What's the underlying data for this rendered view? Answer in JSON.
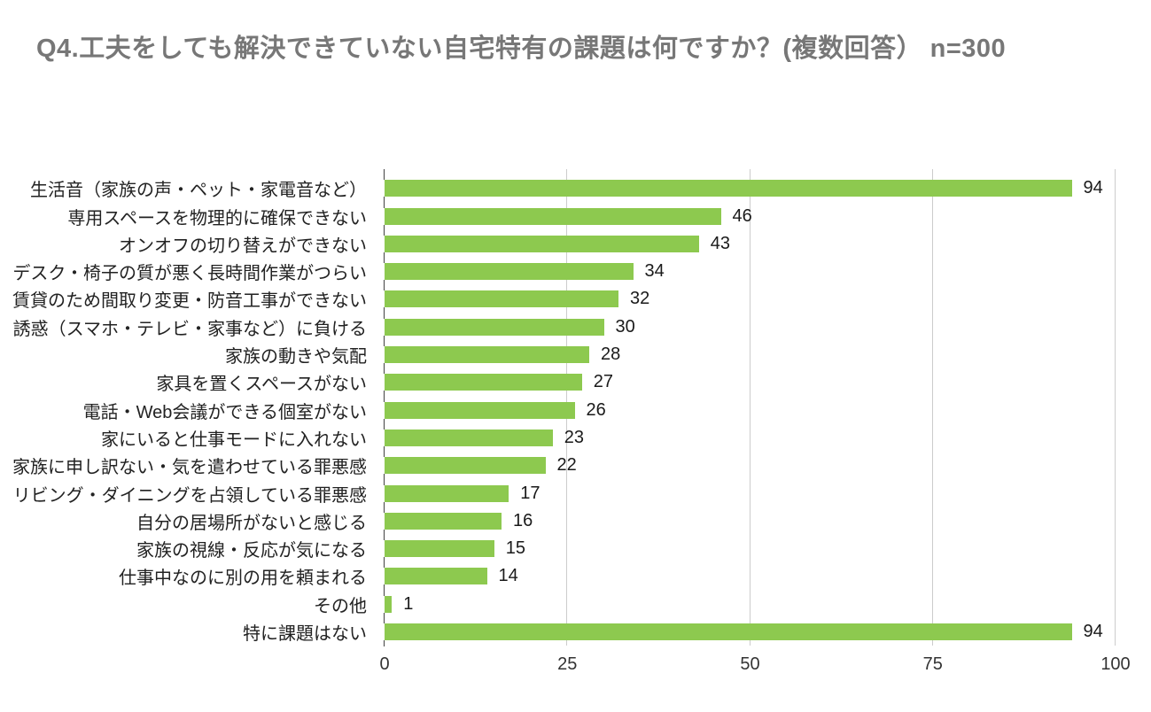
{
  "page": {
    "title": "Q4.工夫をしても解決できていない自宅特有の課題は何ですか？(複数回答） n=300"
  },
  "chart_data": {
    "type": "bar",
    "orientation": "horizontal",
    "title": "Q4.工夫をしても解決できていない自宅特有の課題は何ですか？(複数回答） n=300",
    "sample_size_label": "n=300",
    "categories": [
      "生活音（家族の声・ペット・家電音など）",
      "専用スペースを物理的に確保できない",
      "オンオフの切り替えができない",
      "デスク・椅子の質が悪く長時間作業がつらい",
      "賃貸のため間取り変更・防音工事ができない",
      "誘惑（スマホ・テレビ・家事など）に負ける",
      "家族の動きや気配",
      "家具を置くスペースがない",
      "電話・Web会議ができる個室がない",
      "家にいると仕事モードに入れない",
      "家族に申し訳ない・気を遣わせている罪悪感",
      "リビング・ダイニングを占領している罪悪感",
      "自分の居場所がないと感じる",
      "家族の視線・反応が気になる",
      "仕事中なのに別の用を頼まれる",
      "その他",
      "特に課題はない"
    ],
    "values": [
      94,
      46,
      43,
      34,
      32,
      30,
      28,
      27,
      26,
      23,
      22,
      17,
      16,
      15,
      14,
      1,
      94
    ],
    "xlabel": "",
    "ylabel": "",
    "xlim": [
      0,
      100
    ],
    "xticks": [
      0,
      25,
      50,
      75,
      100
    ],
    "grid": "vertical gridlines at xticks",
    "legend": "none",
    "value_labels": "shown at end of each bar",
    "colors": {
      "bar": "#8dc94f",
      "gridline": "#cccccc",
      "axis_tick": "#424242",
      "title_text": "#777777",
      "category_text": "#222222",
      "value_text": "#1a1a1a",
      "axis_text": "#333333",
      "background": "#ffffff"
    }
  }
}
